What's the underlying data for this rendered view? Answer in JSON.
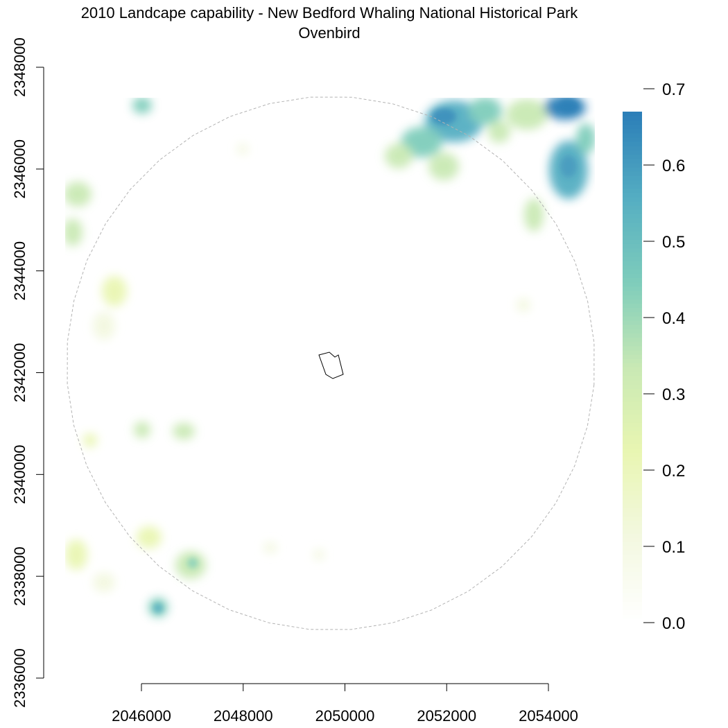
{
  "title_line1": "2010 Landcape capability - New Bedford Whaling National Historical Park",
  "title_line2": "Ovenbird",
  "x_axis": {
    "ticks": [
      2046000,
      2048000,
      2050000,
      2052000,
      2054000
    ],
    "tick_labels": [
      "2046000",
      "2048000",
      "2050000",
      "2052000",
      "2054000"
    ],
    "range": [
      2044500,
      2054900
    ]
  },
  "y_axis": {
    "ticks": [
      2336000,
      2338000,
      2340000,
      2342000,
      2344000,
      2346000,
      2348000
    ],
    "tick_labels": [
      "2336000",
      "2338000",
      "2340000",
      "2342000",
      "2344000",
      "2346000",
      "2348000"
    ],
    "range": [
      2336000,
      2348000
    ]
  },
  "colorbar": {
    "range": [
      0.0,
      0.67
    ],
    "ticks": [
      0.0,
      0.1,
      0.2,
      0.3,
      0.4,
      0.5,
      0.6,
      0.7
    ],
    "tick_labels": [
      "0.0",
      "0.1",
      "0.2",
      "0.3",
      "0.4",
      "0.5",
      "0.6",
      "0.7"
    ],
    "colors": [
      "#ffffff",
      "#f3f8e0",
      "#e9f6b2",
      "#c9e9b4",
      "#7fcdbb",
      "#55aec2",
      "#2c7fb8"
    ]
  },
  "colors": {
    "buffer_outline": "#b3b3b3",
    "park_outline": "#000000"
  },
  "layers": [
    "capability-raster",
    "buffer-circle",
    "park-boundary"
  ]
}
